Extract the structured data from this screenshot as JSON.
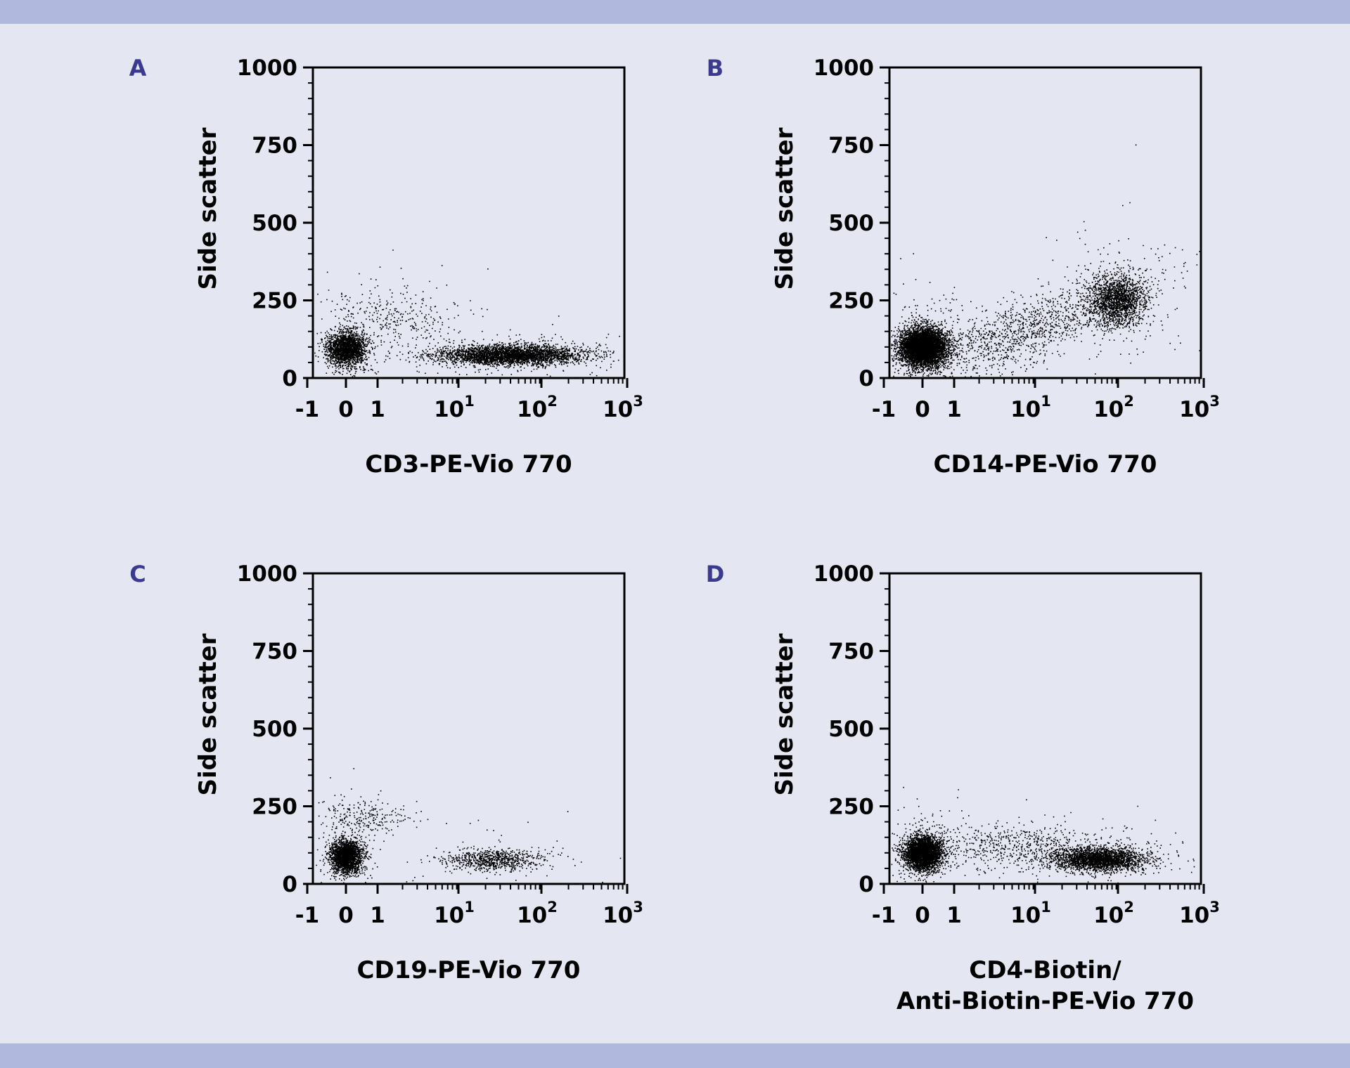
{
  "chart_data": [
    {
      "type": "scatter",
      "panel_label": "A",
      "xlabel": [
        "CD3-PE-Vio 770"
      ],
      "ylabel": "Side scatter",
      "y_ticks": [
        "0",
        "250",
        "500",
        "750",
        "1000"
      ],
      "x_ticks": [
        "-1",
        "0",
        "1",
        "10",
        "10",
        "10"
      ],
      "x_tick_exponents": [
        "",
        "",
        "",
        "1",
        "2",
        "3"
      ],
      "ylim": [
        0,
        1000
      ],
      "x_scale": "biexponential",
      "populations": [
        {
          "x": 0,
          "y": 95,
          "count": 2200
        },
        {
          "x": 1.6,
          "y": 200,
          "count": 320
        },
        {
          "x": 40,
          "y": 75,
          "count": 3400
        }
      ]
    },
    {
      "type": "scatter",
      "panel_label": "B",
      "xlabel": [
        "CD14-PE-Vio 770"
      ],
      "ylabel": "Side scatter",
      "y_ticks": [
        "0",
        "250",
        "500",
        "750",
        "1000"
      ],
      "x_ticks": [
        "-1",
        "0",
        "1",
        "10",
        "10",
        "10"
      ],
      "x_tick_exponents": [
        "",
        "",
        "",
        "1",
        "2",
        "3"
      ],
      "ylim": [
        0,
        1000
      ],
      "x_scale": "biexponential",
      "populations": [
        {
          "x": 0,
          "y": 100,
          "count": 6000
        },
        {
          "x": 8,
          "y": 160,
          "count": 1500
        },
        {
          "x": 90,
          "y": 250,
          "count": 1800
        }
      ]
    },
    {
      "type": "scatter",
      "panel_label": "C",
      "xlabel": [
        "CD19-PE-Vio 770"
      ],
      "ylabel": "Side scatter",
      "y_ticks": [
        "0",
        "250",
        "500",
        "750",
        "1000"
      ],
      "x_ticks": [
        "-1",
        "0",
        "1",
        "10",
        "10",
        "10"
      ],
      "x_tick_exponents": [
        "",
        "",
        "",
        "1",
        "2",
        "3"
      ],
      "ylim": [
        0,
        1000
      ],
      "x_scale": "biexponential",
      "populations": [
        {
          "x": 0,
          "y": 90,
          "count": 2400
        },
        {
          "x": 0.6,
          "y": 220,
          "count": 250
        },
        {
          "x": 25,
          "y": 80,
          "count": 800
        }
      ]
    },
    {
      "type": "scatter",
      "panel_label": "D",
      "xlabel": [
        "CD4-Biotin/",
        "Anti-Biotin-PE-Vio 770"
      ],
      "ylabel": "Side scatter",
      "y_ticks": [
        "0",
        "250",
        "500",
        "750",
        "1000"
      ],
      "x_ticks": [
        "-1",
        "0",
        "1",
        "10",
        "10",
        "10"
      ],
      "x_tick_exponents": [
        "",
        "",
        "",
        "1",
        "2",
        "3"
      ],
      "ylim": [
        0,
        1000
      ],
      "x_scale": "biexponential",
      "populations": [
        {
          "x": 0,
          "y": 100,
          "count": 3500
        },
        {
          "x": 5,
          "y": 120,
          "count": 700
        },
        {
          "x": 55,
          "y": 80,
          "count": 2600
        }
      ]
    }
  ]
}
